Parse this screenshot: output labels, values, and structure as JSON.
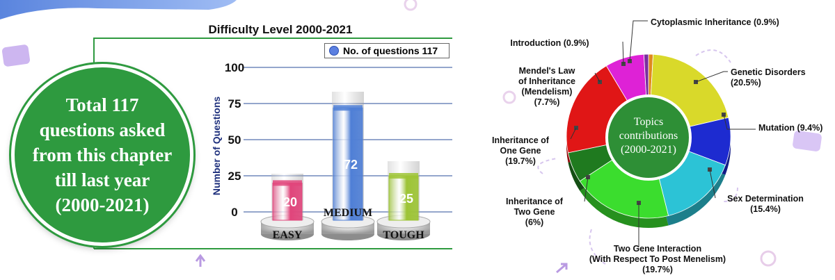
{
  "colors": {
    "green_frame": "#2e9a3f",
    "badge_green": "#2e9a3f",
    "easy": "#e0457b",
    "medium": "#4f7fd6",
    "tough": "#9dc435",
    "legend_dot": "#5b7fe0"
  },
  "badge": {
    "text": "Total 117\nquestions asked\nfrom this chapter\ntill last year\n(2000-2021)"
  },
  "chart_data": [
    {
      "type": "bar",
      "title": "Difficulty Level 2000-2021",
      "ylabel": "Number of Questions",
      "xlabel": "",
      "legend": "No. of questions 117",
      "legend_position": "top-right",
      "categories": [
        "EASY",
        "MEDIUM",
        "TOUGH"
      ],
      "values": [
        20,
        72,
        25
      ],
      "yticks": [
        "0",
        "25",
        "50",
        "75",
        "100"
      ],
      "ylim": [
        0,
        100
      ],
      "grid": true
    },
    {
      "type": "pie",
      "center_label": "Topics\ncontributions\n(2000-2021)",
      "slices": [
        {
          "label": "Cytoplasmic Inheritance (0.9%)",
          "value": 0.9,
          "color": "#e08a1e"
        },
        {
          "label": "Genetic Disorders\n(20.5%)",
          "value": 20.5,
          "color": "#d9d92a"
        },
        {
          "label": "Mutation (9.4%)",
          "value": 9.4,
          "color": "#1d2bd0"
        },
        {
          "label": "Sex Determination\n(15.4%)",
          "value": 15.4,
          "color": "#2cc3d6"
        },
        {
          "label": "Two Gene Interaction\n(With Respect To Post Menelism)\n(19.7%)",
          "value": 19.7,
          "color": "#3bdd2e"
        },
        {
          "label": "Inheritance of\nTwo Gene\n(6%)",
          "value": 6.0,
          "color": "#1f7a1f"
        },
        {
          "label": "Inheritance of\nOne Gene\n(19.7%)",
          "value": 19.7,
          "color": "#e01616"
        },
        {
          "label": "Mendel's Law\nof Inheritance\n(Mendelism)\n(7.7%)",
          "value": 7.7,
          "color": "#de22d6"
        },
        {
          "label": "Introduction (0.9%)",
          "value": 0.9,
          "color": "#7a2f9e"
        }
      ]
    }
  ]
}
